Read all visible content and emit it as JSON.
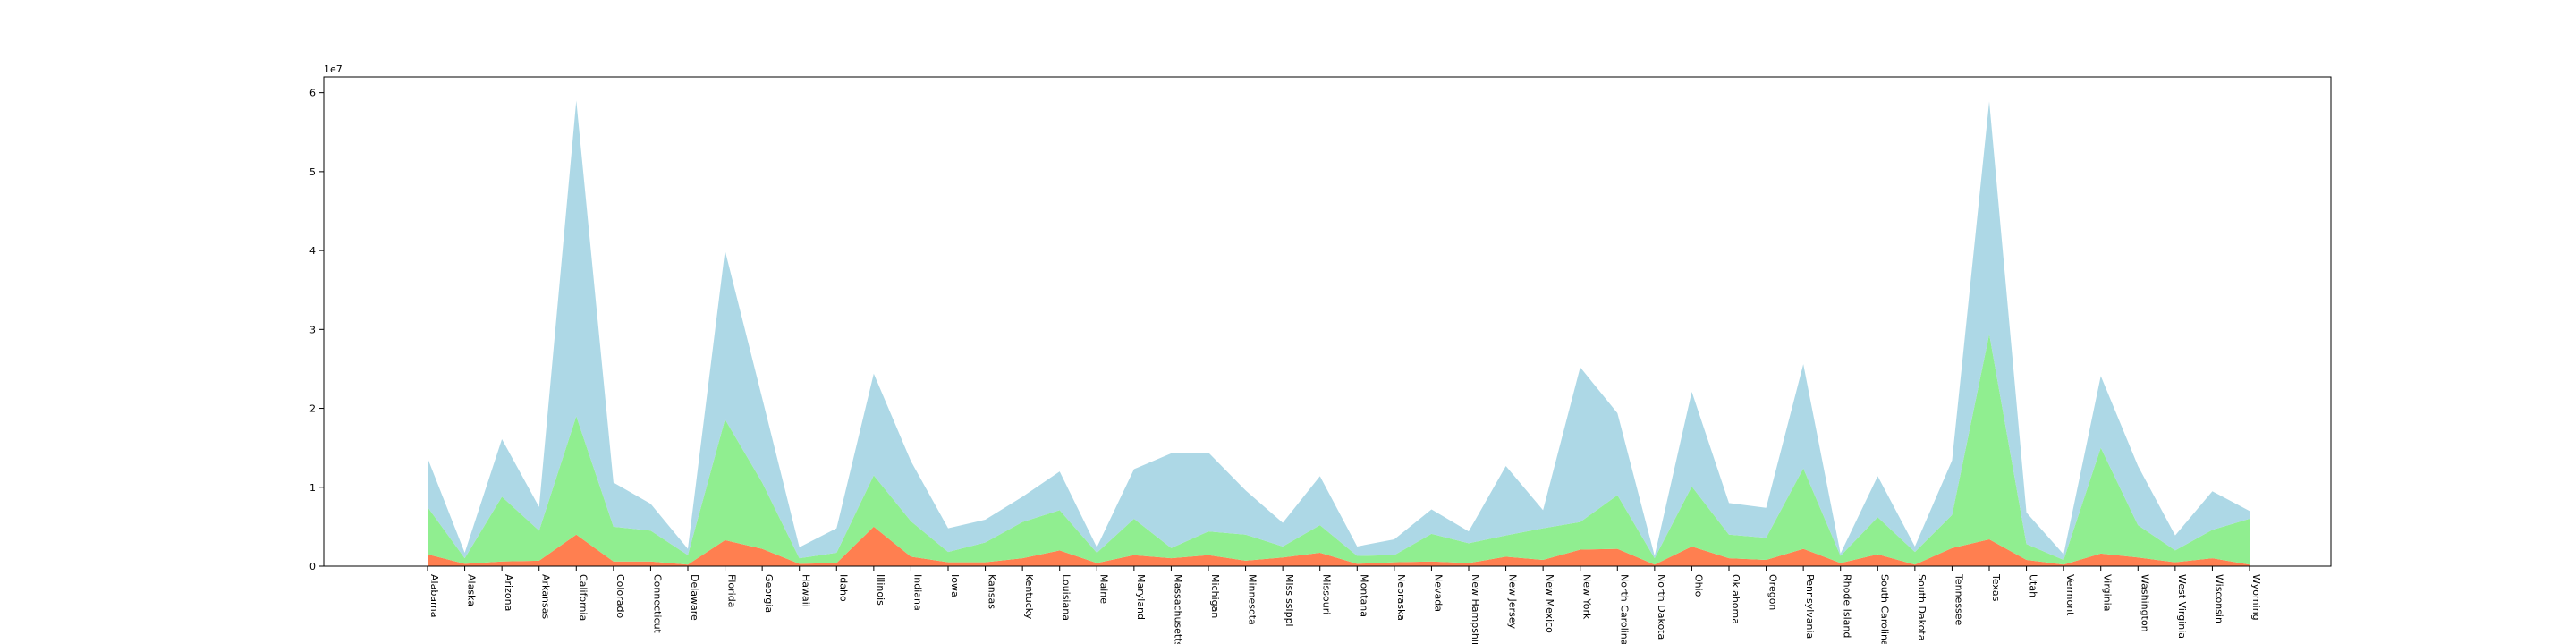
{
  "chart_data": {
    "type": "area",
    "stacked": true,
    "title": "",
    "xlabel": "",
    "ylabel": "",
    "y_scale_label": "1e7",
    "ylim": [
      0,
      62000000
    ],
    "yticks": [
      0,
      10000000,
      20000000,
      30000000,
      40000000,
      50000000,
      60000000
    ],
    "ytick_labels": [
      "0",
      "1",
      "2",
      "3",
      "4",
      "5",
      "6"
    ],
    "grid": false,
    "categories": [
      "Alabama",
      "Alaska",
      "Arizona",
      "Arkansas",
      "California",
      "Colorado",
      "Connecticut",
      "Delaware",
      "Florida",
      "Georgia",
      "Hawaii",
      "Idaho",
      "Illinois",
      "Indiana",
      "Iowa",
      "Kansas",
      "Kentucky",
      "Louisiana",
      "Maine",
      "Maryland",
      "Massachusetts",
      "Michigan",
      "Minnesota",
      "Mississippi",
      "Missouri",
      "Montana",
      "Nebraska",
      "Nevada",
      "New Hampshire",
      "New Jersey",
      "New Mexico",
      "New York",
      "North Carolina",
      "North Dakota",
      "Ohio",
      "Oklahoma",
      "Oregon",
      "Pennsylvania",
      "Rhode Island",
      "South Carolina",
      "South Dakota",
      "Tennessee",
      "Texas",
      "Utah",
      "Vermont",
      "Virginia",
      "Washington",
      "West Virginia",
      "Wisconsin",
      "Wyoming"
    ],
    "series": [
      {
        "color": "#ff7f50",
        "values": [
          1500000,
          300000,
          600000,
          700000,
          4000000,
          600000,
          600000,
          200000,
          3300000,
          2200000,
          300000,
          400000,
          5000000,
          1200000,
          500000,
          500000,
          1000000,
          2000000,
          400000,
          1400000,
          1000000,
          1400000,
          700000,
          1100000,
          1700000,
          300000,
          500000,
          600000,
          400000,
          1200000,
          800000,
          2100000,
          2200000,
          200000,
          2500000,
          1000000,
          800000,
          2200000,
          400000,
          1500000,
          200000,
          2300000,
          3400000,
          800000,
          200000,
          1600000,
          1100000,
          500000,
          1000000,
          200000
        ]
      },
      {
        "color": "#90ee90",
        "values": [
          6000000,
          700000,
          8200000,
          3800000,
          15000000,
          4400000,
          3900000,
          1200000,
          15300000,
          8400000,
          700000,
          1300000,
          6500000,
          4500000,
          1300000,
          2500000,
          4600000,
          5100000,
          1300000,
          4600000,
          1300000,
          3000000,
          3300000,
          1400000,
          3500000,
          1000000,
          900000,
          3500000,
          2500000,
          2700000,
          4000000,
          3500000,
          6800000,
          800000,
          7600000,
          3000000,
          2800000,
          10200000,
          900000,
          4700000,
          1600000,
          4200000,
          26000000,
          2000000,
          600000,
          13400000,
          4100000,
          1500000,
          3600000,
          5800000
        ]
      },
      {
        "color": "#add8e6",
        "values": [
          6200000,
          700000,
          7300000,
          3000000,
          40000000,
          5600000,
          3400000,
          800000,
          21400000,
          10700000,
          1400000,
          3100000,
          12900000,
          7600000,
          3000000,
          2900000,
          3200000,
          4900000,
          700000,
          6300000,
          12000000,
          10000000,
          5600000,
          3000000,
          6200000,
          1200000,
          2000000,
          3100000,
          1500000,
          8800000,
          2300000,
          19600000,
          10400000,
          300000,
          12000000,
          4000000,
          3800000,
          13200000,
          300000,
          5200000,
          700000,
          6900000,
          29500000,
          4000000,
          700000,
          9100000,
          7500000,
          1900000,
          4900000,
          1000000
        ]
      }
    ]
  }
}
